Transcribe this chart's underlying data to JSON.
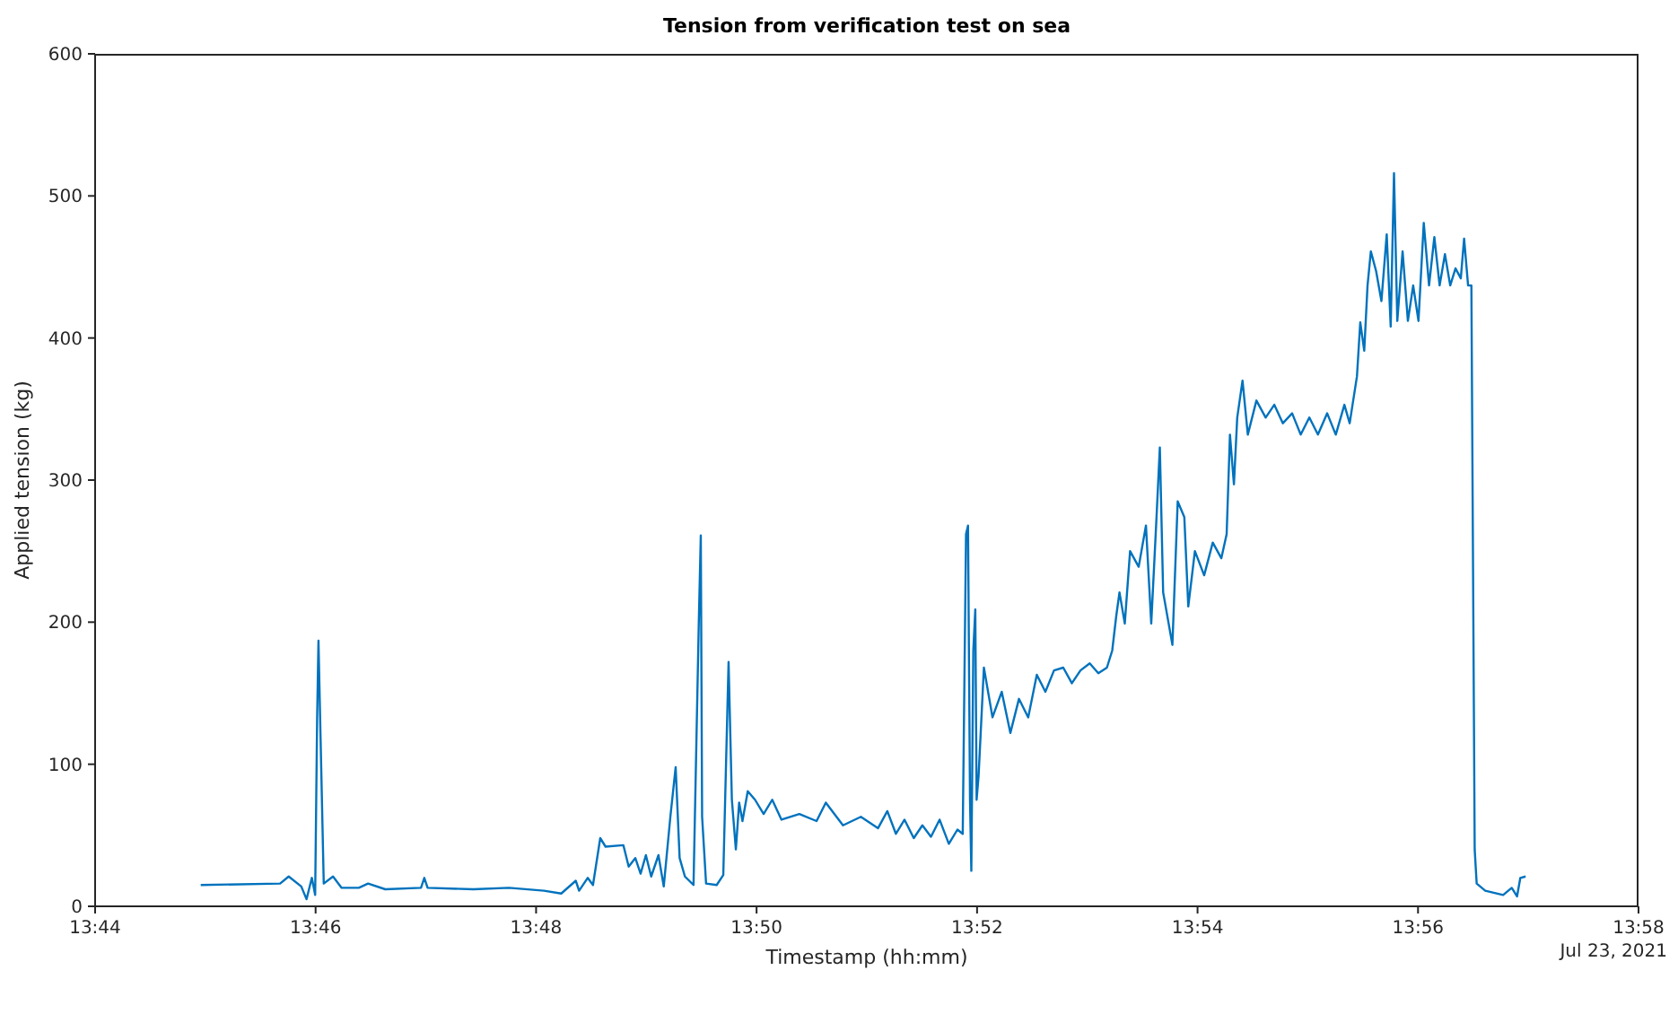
{
  "chart_data": {
    "type": "line",
    "title": "Tension from verification test on sea",
    "xlabel": "Timestamp (hh:mm)",
    "ylabel": "Applied tension (kg)",
    "annotations": [
      "Jul 23, 2021"
    ],
    "xlim": [
      13.733333,
      13.966667
    ],
    "xticks": [
      {
        "value": 13.733333,
        "label": "13:44"
      },
      {
        "value": 13.766667,
        "label": "13:46"
      },
      {
        "value": 13.8,
        "label": "13:48"
      },
      {
        "value": 13.833333,
        "label": "13:50"
      },
      {
        "value": 13.866667,
        "label": "13:52"
      },
      {
        "value": 13.9,
        "label": "13:54"
      },
      {
        "value": 13.933333,
        "label": "13:56"
      },
      {
        "value": 13.966667,
        "label": "13:58"
      }
    ],
    "ylim": [
      0,
      600
    ],
    "yticks": [
      0,
      100,
      200,
      300,
      400,
      500,
      600
    ],
    "grid": false,
    "marker": "none",
    "line_style": "solid",
    "series": [
      {
        "color": "#0072bd",
        "x": [
          13.7493,
          13.7613,
          13.7626,
          13.7645,
          13.7653,
          13.7661,
          13.7666,
          13.7669,
          13.7671,
          13.7674,
          13.7679,
          13.7693,
          13.7706,
          13.7732,
          13.7746,
          13.7772,
          13.7826,
          13.7831,
          13.7836,
          13.7905,
          13.7959,
          13.8012,
          13.8038,
          13.806,
          13.8065,
          13.8078,
          13.8086,
          13.8097,
          13.8105,
          13.8132,
          13.814,
          13.815,
          13.8158,
          13.8166,
          13.8174,
          13.8185,
          13.8193,
          13.8203,
          13.8211,
          13.8217,
          13.8225,
          13.8238,
          13.8246,
          13.8249,
          13.8251,
          13.8257,
          13.8273,
          13.8283,
          13.8291,
          13.8296,
          13.8302,
          13.8307,
          13.8312,
          13.832,
          13.8331,
          13.8344,
          13.8357,
          13.8371,
          13.8398,
          13.8424,
          13.8438,
          13.8464,
          13.8491,
          13.8517,
          13.8531,
          13.8544,
          13.8557,
          13.8571,
          13.8584,
          13.8597,
          13.861,
          13.8624,
          13.8637,
          13.8645,
          13.865,
          13.8653,
          13.8656,
          13.8658,
          13.8661,
          13.8664,
          13.8666,
          13.8669,
          13.8677,
          13.869,
          13.8704,
          13.8717,
          13.873,
          13.8744,
          13.8757,
          13.877,
          13.8783,
          13.8797,
          13.881,
          13.8823,
          13.8837,
          13.885,
          13.8863,
          13.8871,
          13.8877,
          13.8882,
          13.889,
          13.8898,
          13.8911,
          13.8922,
          13.893,
          13.8938,
          13.8943,
          13.8948,
          13.8962,
          13.897,
          13.898,
          13.8986,
          13.8996,
          13.901,
          13.9023,
          13.9036,
          13.9044,
          13.9049,
          13.9055,
          13.906,
          13.9068,
          13.9076,
          13.9089,
          13.9103,
          13.9116,
          13.9129,
          13.9143,
          13.9156,
          13.9169,
          13.9182,
          13.9196,
          13.9209,
          13.9222,
          13.923,
          13.9241,
          13.9246,
          13.9252,
          13.9257,
          13.9262,
          13.927,
          13.9278,
          13.9286,
          13.9292,
          13.9297,
          13.9302,
          13.931,
          13.9318,
          13.9326,
          13.9334,
          13.9342,
          13.935,
          13.9358,
          13.9366,
          13.9374,
          13.9382,
          13.939,
          13.9398,
          13.9403,
          13.9409,
          13.9414,
          13.9419,
          13.9422,
          13.9435,
          13.9462,
          13.9475,
          13.9483,
          13.9488,
          13.9496
        ],
        "values": [
          15,
          16,
          21,
          14,
          5,
          20,
          8,
          133,
          187,
          122,
          16,
          21,
          13,
          13,
          16,
          12,
          13,
          20,
          13,
          12,
          13,
          11,
          9,
          18,
          11,
          20,
          15,
          48,
          42,
          43,
          28,
          34,
          23,
          36,
          21,
          36,
          14,
          63,
          98,
          34,
          21,
          15,
          200,
          261,
          63,
          16,
          15,
          22,
          172,
          75,
          40,
          73,
          60,
          81,
          75,
          65,
          75,
          61,
          65,
          60,
          73,
          57,
          63,
          55,
          67,
          51,
          61,
          48,
          57,
          49,
          61,
          44,
          54,
          51,
          262,
          268,
          75,
          25,
          180,
          209,
          75,
          92,
          168,
          133,
          151,
          122,
          146,
          133,
          163,
          151,
          166,
          168,
          157,
          166,
          171,
          164,
          168,
          180,
          204,
          221,
          199,
          250,
          239,
          268,
          199,
          274,
          323,
          221,
          184,
          285,
          274,
          211,
          250,
          233,
          256,
          245,
          262,
          332,
          297,
          344,
          370,
          332,
          356,
          344,
          353,
          340,
          347,
          332,
          344,
          332,
          347,
          332,
          353,
          340,
          373,
          411,
          391,
          437,
          461,
          447,
          426,
          473,
          408,
          516,
          412,
          461,
          412,
          437,
          412,
          481,
          437,
          471,
          437,
          459,
          437,
          449,
          442,
          470,
          437,
          437,
          40,
          16,
          11,
          8,
          13,
          7,
          20,
          21
        ]
      }
    ]
  }
}
